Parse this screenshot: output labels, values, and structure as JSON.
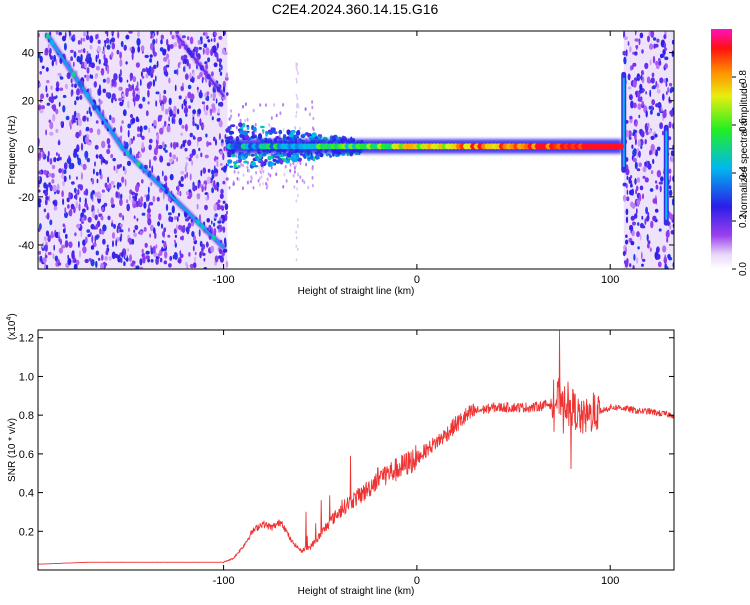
{
  "figure": {
    "title": "C2E4.2024.360.14.15.G16"
  },
  "chart_data": [
    {
      "type": "heatmap",
      "title": "C2E4.2024.360.14.15.G16",
      "xlabel": "Height of straight line (km)",
      "ylabel": "Frequency (Hz)",
      "xlim": [
        -196,
        133
      ],
      "ylim": [
        -50,
        49
      ],
      "x_ticks": [
        -100,
        0,
        100
      ],
      "x_tick_labels": [
        "-100",
        "0",
        "100"
      ],
      "y_ticks": [
        -40,
        -20,
        0,
        20,
        40
      ],
      "y_tick_labels": [
        "-40",
        "-20",
        "0",
        "20",
        "40"
      ],
      "grid": false,
      "colorbar": {
        "label": "Normalized spectral amplitude",
        "range": [
          0,
          1
        ],
        "ticks": [
          0.0,
          0.2,
          0.4,
          0.6,
          0.8
        ],
        "tick_labels": [
          "0.0",
          "0.2",
          "0.4",
          "0.6",
          "0.8"
        ],
        "colormap": "rainbow (purple-blue-cyan-green-yellow-orange-red-magenta)"
      },
      "features": [
        {
          "name": "main tone",
          "x_range": [
            -98,
            106
          ],
          "frequency_hz": 1,
          "amplitude": 0.85
        },
        {
          "name": "descending line A",
          "points": [
            [
              -191,
              47
            ],
            [
              -152,
              0
            ],
            [
              -100,
              -41
            ]
          ],
          "amplitude": 0.4
        },
        {
          "name": "descending line B",
          "points": [
            [
              -124,
              47
            ],
            [
              -100,
              22
            ]
          ],
          "amplitude": 0.2
        },
        {
          "name": "noise region",
          "x_range": [
            -196,
            -98
          ]
        },
        {
          "name": "noise region",
          "x_range": [
            107,
            133
          ]
        },
        {
          "name": "vertical streak",
          "x": 107,
          "y_range": [
            -10,
            32
          ]
        },
        {
          "name": "vertical streak",
          "x": 129,
          "y_range": [
            -32,
            10
          ]
        }
      ]
    },
    {
      "type": "line",
      "xlabel": "Height of straight line (km)",
      "ylabel": "SNR (10 * v/v)",
      "y_multiplier_label": "(x10",
      "y_multiplier_exponent": "4",
      "y_multiplier_suffix": ")",
      "xlim": [
        -196,
        133
      ],
      "ylim": [
        0,
        1.24
      ],
      "x_ticks": [
        -100,
        0,
        100
      ],
      "x_tick_labels": [
        "-100",
        "0",
        "100"
      ],
      "y_ticks": [
        0.2,
        0.4,
        0.6,
        0.8,
        1.0,
        1.2
      ],
      "y_tick_labels": [
        "0.2",
        "0.4",
        "0.6",
        "0.8",
        "1.0",
        "1.2"
      ],
      "grid": false,
      "color": "#ee3333",
      "x": [
        -196,
        -170,
        -140,
        -110,
        -100,
        -95,
        -90,
        -85,
        -80,
        -75,
        -70,
        -65,
        -60,
        -55,
        -50,
        -45,
        -40,
        -35,
        -30,
        -25,
        -20,
        -15,
        -10,
        -5,
        0,
        5,
        10,
        15,
        20,
        25,
        30,
        35,
        40,
        45,
        50,
        55,
        60,
        65,
        70,
        75,
        80,
        85,
        90,
        95,
        100,
        105,
        110,
        115,
        120,
        125,
        133
      ],
      "y": [
        0.03,
        0.04,
        0.04,
        0.04,
        0.04,
        0.06,
        0.12,
        0.2,
        0.24,
        0.22,
        0.25,
        0.15,
        0.1,
        0.12,
        0.18,
        0.25,
        0.3,
        0.35,
        0.38,
        0.42,
        0.48,
        0.5,
        0.52,
        0.55,
        0.58,
        0.62,
        0.66,
        0.7,
        0.75,
        0.79,
        0.82,
        0.83,
        0.84,
        0.84,
        0.84,
        0.84,
        0.84,
        0.85,
        0.86,
        0.9,
        0.85,
        0.78,
        0.8,
        0.82,
        0.84,
        0.84,
        0.83,
        0.82,
        0.82,
        0.81,
        0.8
      ]
    }
  ]
}
